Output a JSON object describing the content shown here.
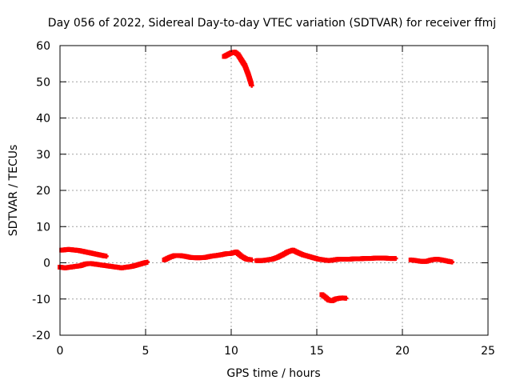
{
  "chart_data": {
    "type": "scatter",
    "title": "Day 056 of 2022, Sidereal Day-to-day VTEC variation (SDTVAR) for receiver ffmj",
    "xlabel": "GPS time / hours",
    "ylabel": "SDTVAR / TECUs",
    "xlim": [
      0,
      25
    ],
    "ylim": [
      -20,
      60
    ],
    "xticks": [
      0,
      5,
      10,
      15,
      20,
      25
    ],
    "yticks": [
      -20,
      -10,
      0,
      10,
      20,
      30,
      40,
      50,
      60
    ],
    "xtick_labels": [
      "0",
      "5",
      "10",
      "15",
      "20",
      "25"
    ],
    "ytick_labels": [
      "-20",
      "-10",
      "0",
      "10",
      "20",
      "30",
      "40",
      "50",
      "60"
    ],
    "grid": true,
    "legend": "none",
    "marker_color": "#ff0000",
    "series": [
      {
        "x": [
          0.1,
          0.3,
          0.5,
          0.7,
          0.9,
          1.1,
          1.3,
          1.5,
          1.7,
          1.9,
          2.1,
          2.3,
          2.5,
          2.7
        ],
        "y": [
          3.5,
          3.6,
          3.7,
          3.6,
          3.5,
          3.4,
          3.2,
          3.0,
          2.8,
          2.6,
          2.4,
          2.2,
          2.0,
          1.8
        ]
      },
      {
        "x": [
          0.0,
          0.3,
          0.6,
          0.9,
          1.2,
          1.5,
          1.8,
          2.1,
          2.4,
          2.7,
          3.0,
          3.3,
          3.6,
          3.9,
          4.2,
          4.5,
          4.8,
          5.1
        ],
        "y": [
          -1.2,
          -1.4,
          -1.2,
          -1.0,
          -0.8,
          -0.3,
          -0.2,
          -0.4,
          -0.6,
          -0.8,
          -1.0,
          -1.2,
          -1.4,
          -1.2,
          -1.0,
          -0.6,
          -0.2,
          0.2
        ]
      },
      {
        "x": [
          6.1,
          6.4,
          6.7,
          7.0,
          7.3,
          7.6,
          7.9,
          8.2,
          8.5,
          8.8,
          9.1,
          9.4,
          9.7,
          10.0,
          10.3,
          10.6,
          10.9,
          11.2
        ],
        "y": [
          0.8,
          1.5,
          2.0,
          2.0,
          1.8,
          1.5,
          1.4,
          1.4,
          1.5,
          1.8,
          2.0,
          2.2,
          2.5,
          2.6,
          3.0,
          1.8,
          1.0,
          0.8
        ]
      },
      {
        "x": [
          9.6,
          9.8,
          10.0,
          10.2,
          10.4,
          10.6,
          10.8,
          11.0,
          11.2
        ],
        "y": [
          57.0,
          57.5,
          58.0,
          58.2,
          57.5,
          56.0,
          54.5,
          52.0,
          49.0
        ]
      },
      {
        "x": [
          11.5,
          11.8,
          12.1,
          12.4,
          12.7,
          13.0,
          13.3,
          13.6,
          13.9,
          14.2,
          14.5,
          14.8,
          15.1,
          15.4,
          15.7,
          16.0,
          16.3,
          16.6,
          16.9,
          17.2,
          17.5,
          17.8,
          18.1,
          18.4,
          18.7,
          19.0,
          19.3,
          19.6
        ],
        "y": [
          0.6,
          0.6,
          0.8,
          1.0,
          1.5,
          2.2,
          3.0,
          3.5,
          2.8,
          2.2,
          1.8,
          1.4,
          1.0,
          0.8,
          0.6,
          0.8,
          1.0,
          1.0,
          1.0,
          1.1,
          1.1,
          1.2,
          1.2,
          1.3,
          1.3,
          1.3,
          1.2,
          1.2
        ]
      },
      {
        "x": [
          15.3,
          15.5,
          15.7,
          15.9,
          16.1,
          16.3,
          16.5,
          16.7
        ],
        "y": [
          -8.8,
          -9.5,
          -10.3,
          -10.5,
          -10.0,
          -9.8,
          -9.7,
          -9.8
        ]
      },
      {
        "x": [
          20.5,
          20.8,
          21.1,
          21.4,
          21.7,
          22.0,
          22.3,
          22.6,
          22.9
        ],
        "y": [
          0.8,
          0.6,
          0.4,
          0.4,
          0.8,
          1.0,
          0.8,
          0.5,
          0.2
        ]
      }
    ]
  }
}
